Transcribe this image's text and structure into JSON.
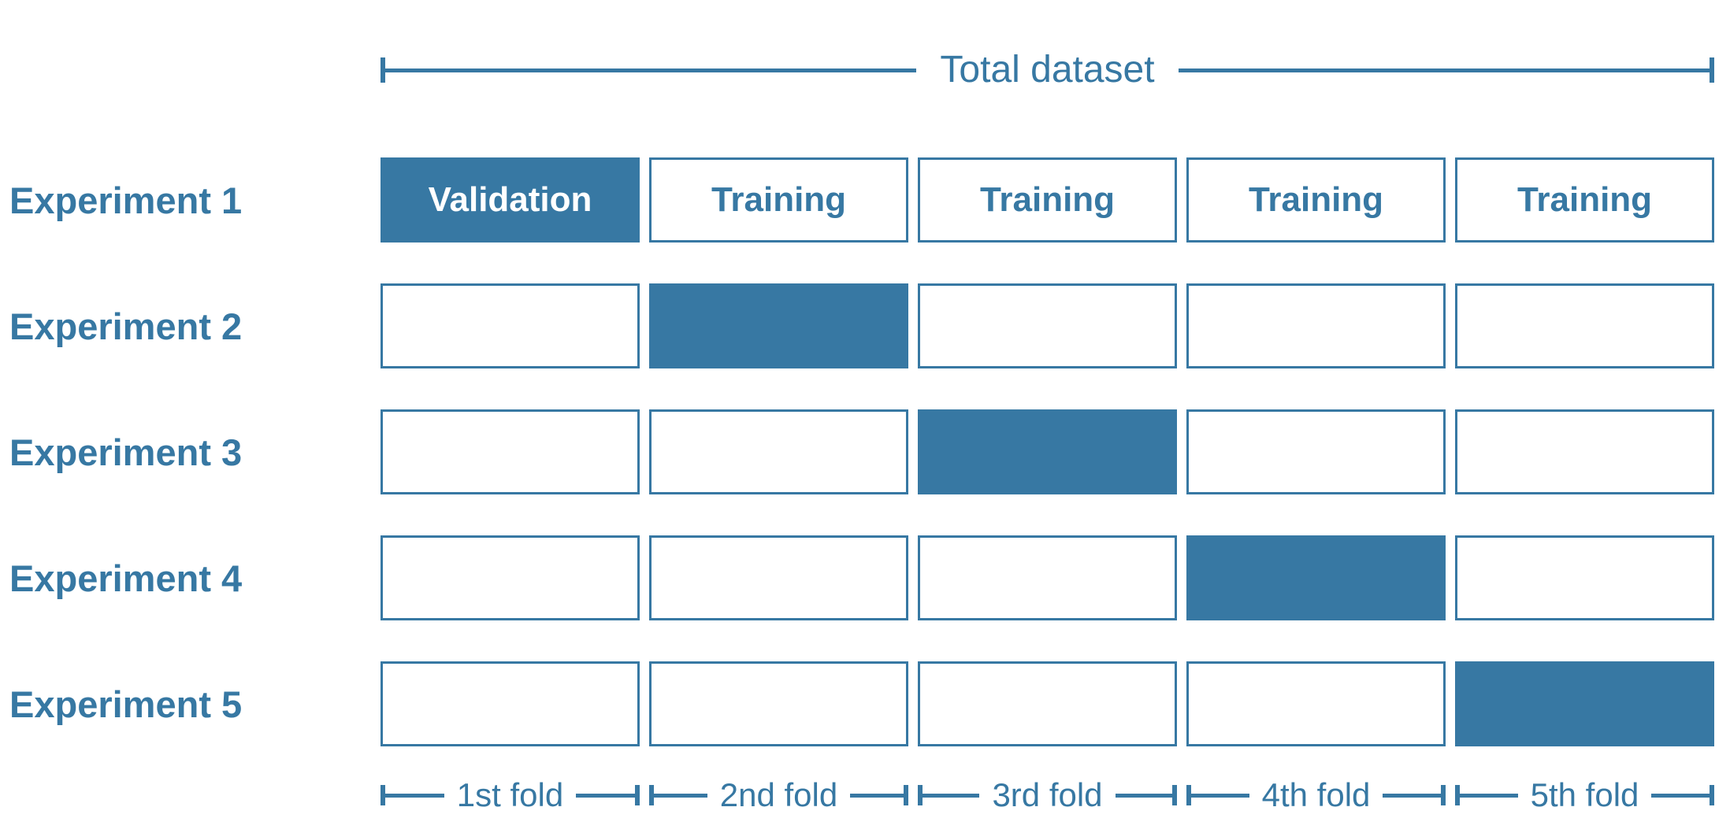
{
  "diagram": {
    "top_bracket": {
      "label": "Total dataset"
    },
    "rows": [
      {
        "label": "Experiment 1",
        "cells": [
          {
            "text": "Validation",
            "state": "filled"
          },
          {
            "text": "Training",
            "state": "empty"
          },
          {
            "text": "Training",
            "state": "empty"
          },
          {
            "text": "Training",
            "state": "empty"
          },
          {
            "text": "Training",
            "state": "empty"
          }
        ]
      },
      {
        "label": "Experiment 2",
        "cells": [
          {
            "text": "",
            "state": "empty"
          },
          {
            "text": "",
            "state": "filled"
          },
          {
            "text": "",
            "state": "empty"
          },
          {
            "text": "",
            "state": "empty"
          },
          {
            "text": "",
            "state": "empty"
          }
        ]
      },
      {
        "label": "Experiment 3",
        "cells": [
          {
            "text": "",
            "state": "empty"
          },
          {
            "text": "",
            "state": "empty"
          },
          {
            "text": "",
            "state": "filled"
          },
          {
            "text": "",
            "state": "empty"
          },
          {
            "text": "",
            "state": "empty"
          }
        ]
      },
      {
        "label": "Experiment 4",
        "cells": [
          {
            "text": "",
            "state": "empty"
          },
          {
            "text": "",
            "state": "empty"
          },
          {
            "text": "",
            "state": "empty"
          },
          {
            "text": "",
            "state": "filled"
          },
          {
            "text": "",
            "state": "empty"
          }
        ]
      },
      {
        "label": "Experiment 5",
        "cells": [
          {
            "text": "",
            "state": "empty"
          },
          {
            "text": "",
            "state": "empty"
          },
          {
            "text": "",
            "state": "empty"
          },
          {
            "text": "",
            "state": "empty"
          },
          {
            "text": "",
            "state": "filled"
          }
        ]
      }
    ],
    "folds": [
      {
        "label": "1st fold"
      },
      {
        "label": "2nd fold"
      },
      {
        "label": "3rd fold"
      },
      {
        "label": "4th fold"
      },
      {
        "label": "5th fold"
      }
    ],
    "colors": {
      "accent": "#3778A3",
      "box_fill": "#3778A3",
      "box_border": "#3778A3",
      "filled_text": "#FFFFFF",
      "background": "#FFFFFF"
    }
  }
}
